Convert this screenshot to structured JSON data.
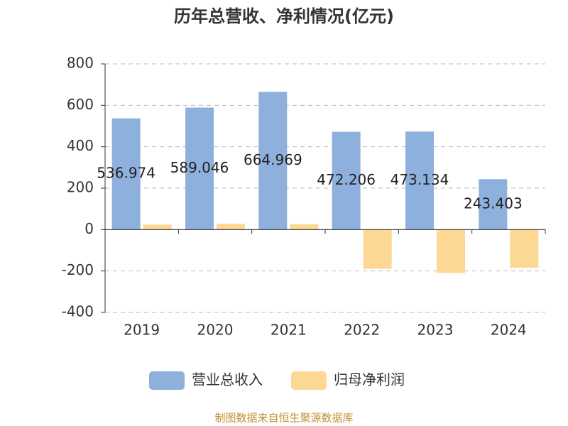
{
  "chart_data": {
    "type": "bar",
    "title": "历年总营收、净利情况(亿元)",
    "categories": [
      "2019",
      "2020",
      "2021",
      "2022",
      "2023",
      "2024"
    ],
    "series": [
      {
        "name": "营业总收入",
        "color": "#8eb0dc",
        "values": [
          536.974,
          589.046,
          664.969,
          472.206,
          473.134,
          243.403
        ],
        "show_labels": true
      },
      {
        "name": "归母净利润",
        "color": "#fdd894",
        "values": [
          24,
          28,
          26,
          -190,
          -210,
          -185
        ],
        "show_labels": false
      }
    ],
    "ylim": [
      -400,
      800
    ],
    "yticks": [
      -400,
      -200,
      0,
      200,
      400,
      600,
      800
    ],
    "grid": true,
    "source": "制图数据来自恒生聚源数据库"
  }
}
